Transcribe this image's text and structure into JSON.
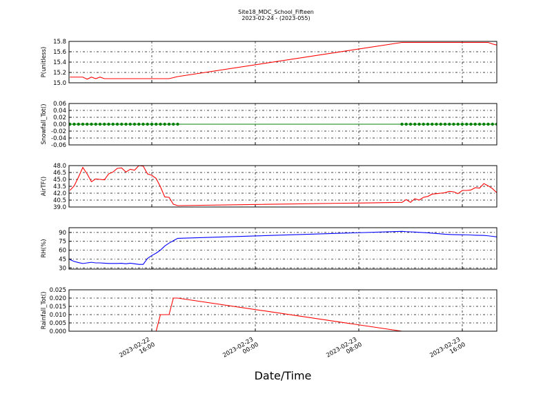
{
  "chart_data": {
    "type": "line",
    "title": "Site18_MDC_School_Fifteen",
    "subtitle": "2023-02-24 - (2023-055)",
    "xlabel": "Date/Time",
    "x": [
      "2023-02-22 09:40",
      "2023-02-22 10:00",
      "2023-02-22 10:20",
      "2023-02-22 10:40",
      "2023-02-22 11:00",
      "2023-02-22 11:20",
      "2023-02-22 11:40",
      "2023-02-22 12:00",
      "2023-02-22 12:20",
      "2023-02-22 12:40",
      "2023-02-22 13:00",
      "2023-02-22 13:20",
      "2023-02-22 13:40",
      "2023-02-22 14:00",
      "2023-02-22 14:20",
      "2023-02-22 14:40",
      "2023-02-22 15:00",
      "2023-02-22 15:20",
      "2023-02-22 15:40",
      "2023-02-22 16:00",
      "2023-02-22 16:20",
      "2023-02-22 16:40",
      "2023-02-22 17:00",
      "2023-02-22 17:20",
      "2023-02-22 17:40",
      "2023-02-22 18:00",
      "2023-02-23 11:20",
      "2023-02-23 11:40",
      "2023-02-23 12:00",
      "2023-02-23 12:20",
      "2023-02-23 12:40",
      "2023-02-23 13:00",
      "2023-02-23 13:20",
      "2023-02-23 13:40",
      "2023-02-23 14:00",
      "2023-02-23 14:20",
      "2023-02-23 14:40",
      "2023-02-23 15:00",
      "2023-02-23 15:20",
      "2023-02-23 15:40",
      "2023-02-23 16:00",
      "2023-02-23 16:20",
      "2023-02-23 16:40",
      "2023-02-23 17:00",
      "2023-02-23 17:20",
      "2023-02-23 17:40",
      "2023-02-23 18:00",
      "2023-02-23 18:20",
      "2023-02-23 18:40"
    ],
    "xlim": [
      "2023-02-22 09:36",
      "2023-02-23 18:40"
    ],
    "xticks": [
      "2023-02-22 16:00",
      "2023-02-23 00:00",
      "2023-02-23 08:00",
      "2023-02-23 16:00"
    ],
    "grid": true,
    "panels": [
      {
        "ylabel": "P(unitless)",
        "ylim": [
          15.0,
          15.8
        ],
        "yticks": [
          {
            "value": 15.0,
            "label": "15.0"
          },
          15.2,
          15.4,
          15.6,
          15.8
        ],
        "series": [
          {
            "color": "#ff0000",
            "marker": false,
            "values": [
              15.11,
              15.11,
              15.11,
              15.11,
              15.07,
              15.11,
              15.08,
              15.11,
              15.08,
              15.08,
              15.08,
              15.08,
              15.08,
              15.08,
              15.08,
              15.08,
              15.08,
              15.08,
              15.08,
              15.08,
              15.08,
              15.08,
              15.08,
              15.08,
              15.1,
              15.12,
              15.78,
              15.78,
              15.78,
              15.78,
              15.78,
              15.78,
              15.78,
              15.78,
              15.78,
              15.78,
              15.78,
              15.78,
              15.78,
              15.78,
              15.78,
              15.78,
              15.78,
              15.78,
              15.78,
              15.78,
              15.78,
              15.75,
              15.73
            ]
          }
        ]
      },
      {
        "ylabel": "Snowfall_Tot()",
        "ylim": [
          -0.06,
          0.06
        ],
        "yticks": [
          -0.06,
          -0.04,
          -0.02,
          {
            "value": 0,
            "label": "0.00"
          },
          0.02,
          0.04,
          0.06
        ],
        "series": [
          {
            "color": "#008000",
            "marker": true,
            "values": [
              0,
              0,
              0,
              0,
              0,
              0,
              0,
              0,
              0,
              0,
              0,
              0,
              0,
              0,
              0,
              0,
              0,
              0,
              0,
              0,
              0,
              0,
              0,
              0,
              0,
              0,
              0,
              0,
              0,
              0,
              0,
              0,
              0,
              0,
              0,
              0,
              0,
              0,
              0,
              0,
              0,
              0,
              0,
              0,
              0,
              0,
              0,
              0,
              0
            ]
          }
        ]
      },
      {
        "ylabel": "AirTF()",
        "ylim": [
          39.0,
          48.0
        ],
        "yticks": [
          {
            "value": 39.0,
            "label": "39.0"
          },
          40.5,
          {
            "value": 42.0,
            "label": "42.0"
          },
          43.5,
          {
            "value": 45.0,
            "label": "45.0"
          },
          46.5,
          {
            "value": 48.0,
            "label": "48.0"
          }
        ],
        "series": [
          {
            "color": "#ff0000",
            "marker": false,
            "values": [
              42.6,
              43.6,
              45.5,
              47.6,
              46.2,
              44.5,
              45.1,
              45.0,
              44.9,
              46.2,
              46.6,
              47.4,
              47.5,
              46.6,
              47.2,
              47.0,
              48.0,
              47.9,
              46.2,
              45.9,
              45.2,
              43.4,
              41.2,
              41.1,
              39.6,
              39.3,
              40.0,
              40.6,
              40.0,
              40.8,
              40.5,
              41.1,
              41.3,
              41.8,
              41.9,
              42.0,
              42.1,
              42.4,
              42.3,
              41.9,
              42.6,
              42.6,
              42.7,
              43.2,
              43.1,
              44.1,
              43.6,
              43.0,
              42.1
            ]
          }
        ]
      },
      {
        "ylabel": "RH(%)",
        "ylim": [
          28,
          98
        ],
        "yticks": [
          30,
          45,
          60,
          75,
          90
        ],
        "series": [
          {
            "color": "#0000ff",
            "marker": false,
            "values": [
              44,
              41,
              39,
              37.5,
              38.5,
              39.5,
              38.5,
              38.5,
              38,
              37.5,
              37.5,
              37.5,
              37.8,
              37,
              38,
              37,
              36,
              36,
              46,
              51,
              55,
              60,
              67,
              72,
              76,
              80,
              91.8,
              91.3,
              91,
              90.6,
              90.2,
              89.8,
              89.3,
              88.8,
              88.2,
              87.6,
              87,
              86.6,
              86.3,
              86.1,
              86,
              85.9,
              85.6,
              85.3,
              85.1,
              84.9,
              84.3,
              83.4,
              82.5
            ]
          }
        ]
      },
      {
        "ylabel": "Rainfall_Tot()",
        "ylim": [
          0,
          0.025
        ],
        "yticks": [
          {
            "value": 0,
            "label": "0.000"
          },
          0.005,
          {
            "value": 0.01,
            "label": "0.010"
          },
          0.015,
          {
            "value": 0.02,
            "label": "0.020"
          },
          0.025
        ],
        "series": [
          {
            "color": "#ff0000",
            "marker": false,
            "values": [
              0,
              0,
              0,
              0,
              0,
              0,
              0,
              0,
              0,
              0,
              0,
              0,
              0,
              0,
              0,
              0,
              0,
              0,
              0,
              0,
              0,
              0.01,
              0.01,
              0.01,
              0.02,
              0.02,
              0,
              0,
              0,
              0,
              0,
              0,
              0,
              0,
              0,
              0,
              0,
              0,
              0,
              0,
              0,
              0,
              0,
              0,
              0,
              0,
              0,
              0,
              0
            ]
          }
        ]
      }
    ]
  }
}
